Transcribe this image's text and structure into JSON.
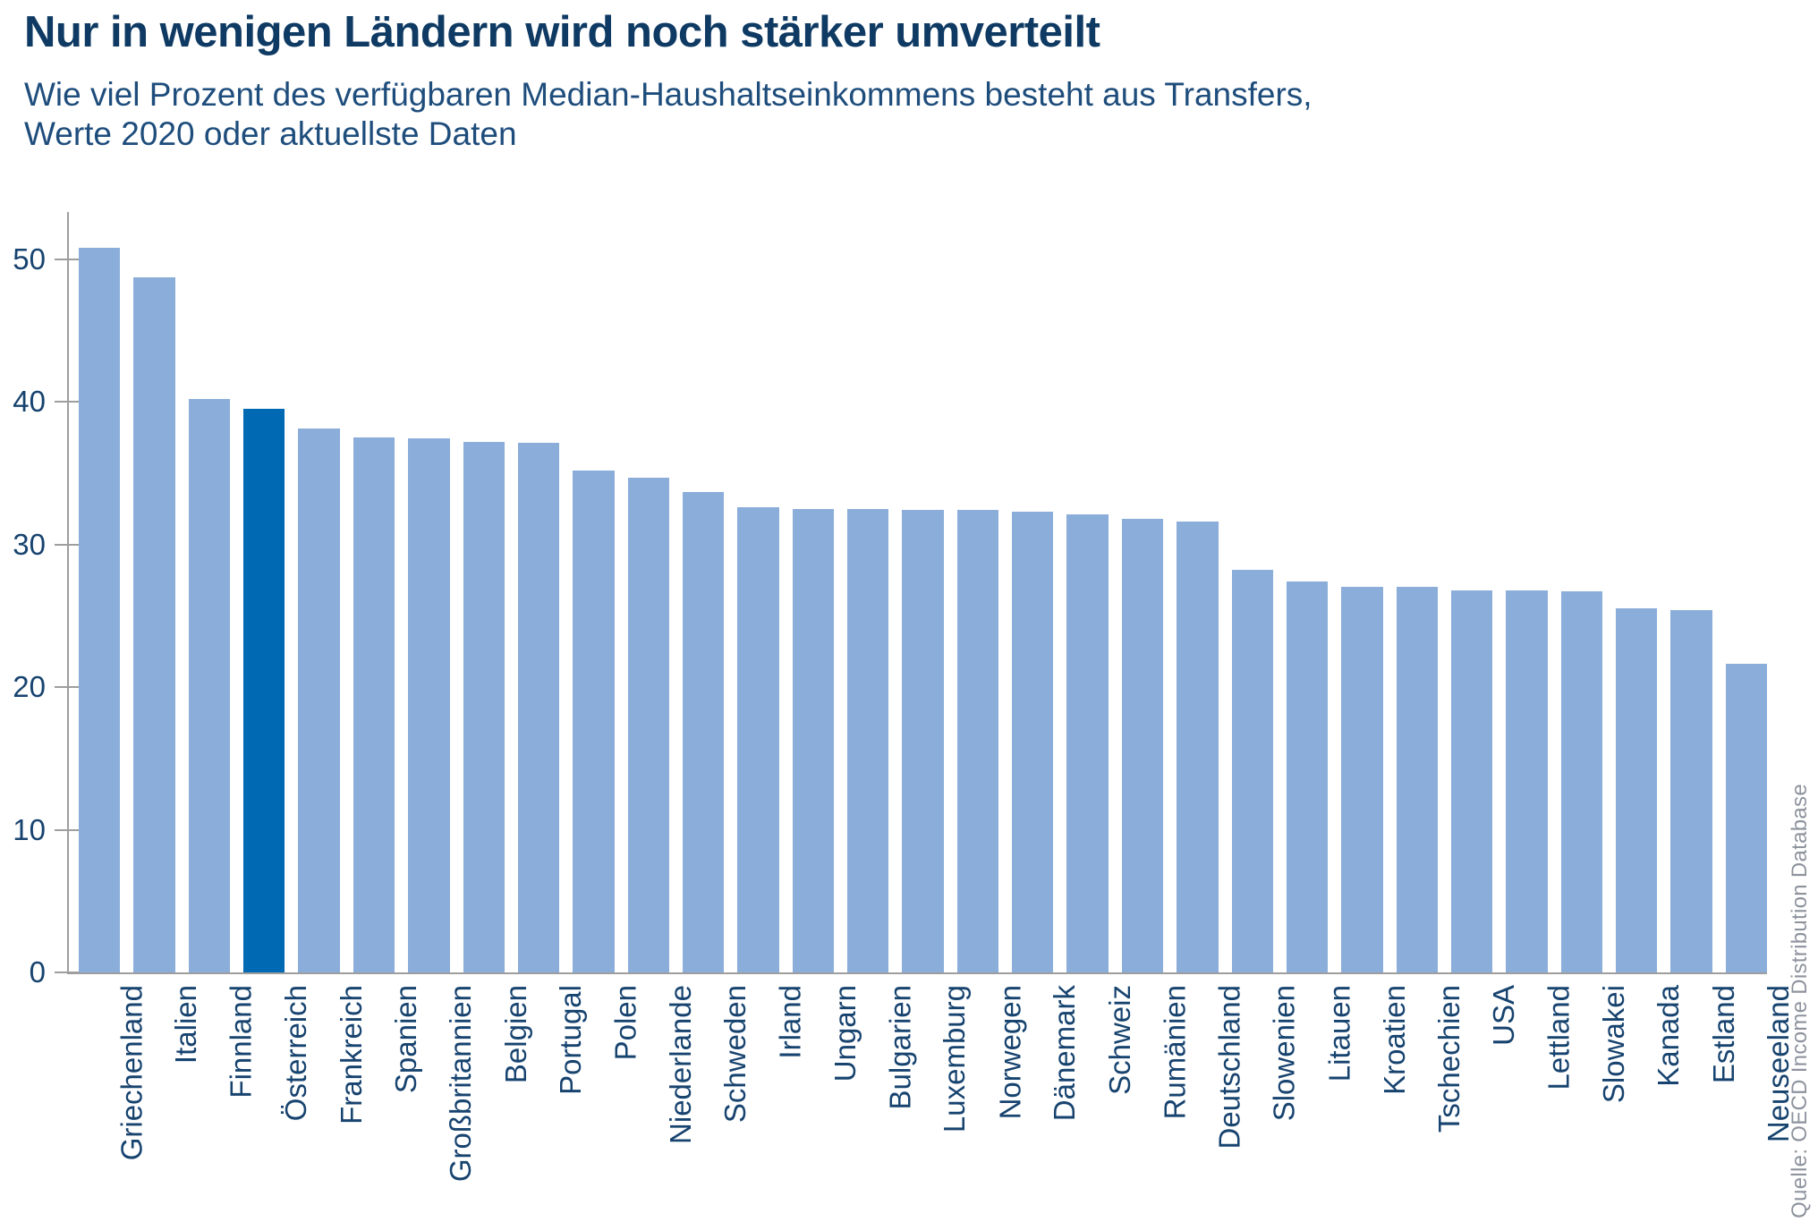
{
  "header": {
    "title": "Nur in wenigen Ländern wird noch stärker umverteilt",
    "subtitle": "Wie viel Prozent des verfügbaren Median-Haushaltseinkommens besteht aus Transfers,\nWerte 2020 oder aktuellste Daten"
  },
  "source": {
    "text": "Quelle: OECD Income Distribution Database"
  },
  "colors": {
    "bar": "#8badda",
    "bar_highlight": "#0069b4",
    "axis": "#9e9e9e",
    "title": "#0e3a63",
    "subtitle": "#1e4d7c",
    "tick_label": "#17436f",
    "source": "#8d939d"
  },
  "chart_data": {
    "type": "bar",
    "title": "Nur in wenigen Ländern wird noch stärker umverteilt",
    "subtitle": "Wie viel Prozent des verfügbaren Median-Haushaltseinkommens besteht aus Transfers, Werte 2020 oder aktuellste Daten",
    "xlabel": "",
    "ylabel": "",
    "ylim": [
      0,
      53.3
    ],
    "yticks": [
      0,
      10,
      20,
      30,
      40,
      50
    ],
    "grid": false,
    "legend": false,
    "bar_orientation": "vertical",
    "highlight_category": "Österreich",
    "categories": [
      "Griechenland",
      "Italien",
      "Finnland",
      "Österreich",
      "Frankreich",
      "Spanien",
      "Großbritannien",
      "Belgien",
      "Portugal",
      "Polen",
      "Niederlande",
      "Schweden",
      "Irland",
      "Ungarn",
      "Bulgarien",
      "Luxemburg",
      "Norwegen",
      "Dänemark",
      "Schweiz",
      "Rumänien",
      "Deutschland",
      "Slowenien",
      "Litauen",
      "Kroatien",
      "Tschechien",
      "USA",
      "Lettland",
      "Slowakei",
      "Kanada",
      "Estland",
      "Neuseeland"
    ],
    "values": [
      50.8,
      48.7,
      40.2,
      39.5,
      38.1,
      37.5,
      37.4,
      37.2,
      37.1,
      35.2,
      34.7,
      33.7,
      32.6,
      32.5,
      32.5,
      32.4,
      32.4,
      32.3,
      32.1,
      31.8,
      31.6,
      28.2,
      27.4,
      27.0,
      27.0,
      26.8,
      26.8,
      26.7,
      25.5,
      25.4,
      21.6
    ],
    "source": "Quelle: OECD Income Distribution Database"
  }
}
